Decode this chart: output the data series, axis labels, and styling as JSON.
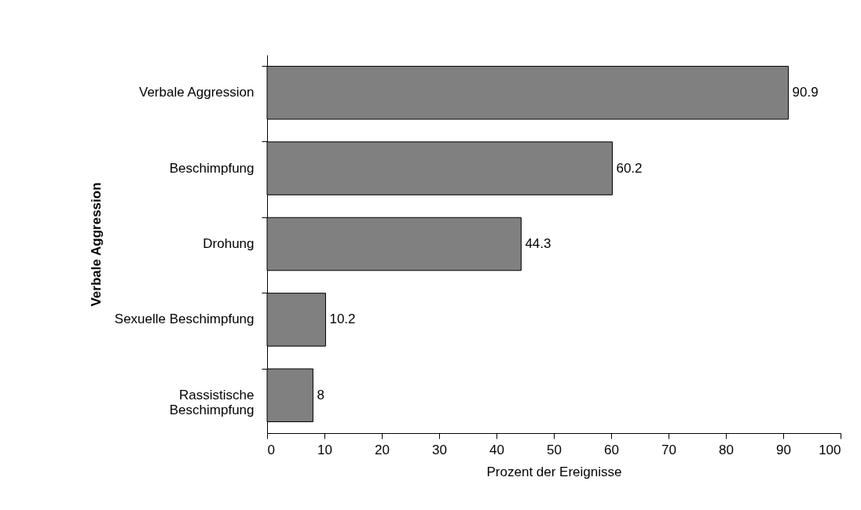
{
  "chart_data": {
    "type": "bar",
    "orientation": "horizontal",
    "ylabel": "Verbale Aggression",
    "xlabel": "Prozent der Ereignisse",
    "categories": [
      "Verbale Aggression",
      "Beschimpfung",
      "Drohung",
      "Sexuelle Beschimpfung",
      "Rassistische Beschimpfung"
    ],
    "values": [
      90.9,
      60.2,
      44.3,
      10.2,
      8
    ],
    "color": "#808080",
    "xlim": [
      0,
      100
    ],
    "xticks": [
      0,
      10,
      20,
      30,
      40,
      50,
      60,
      70,
      80,
      90,
      100
    ],
    "data_labels": true,
    "grid": false
  }
}
